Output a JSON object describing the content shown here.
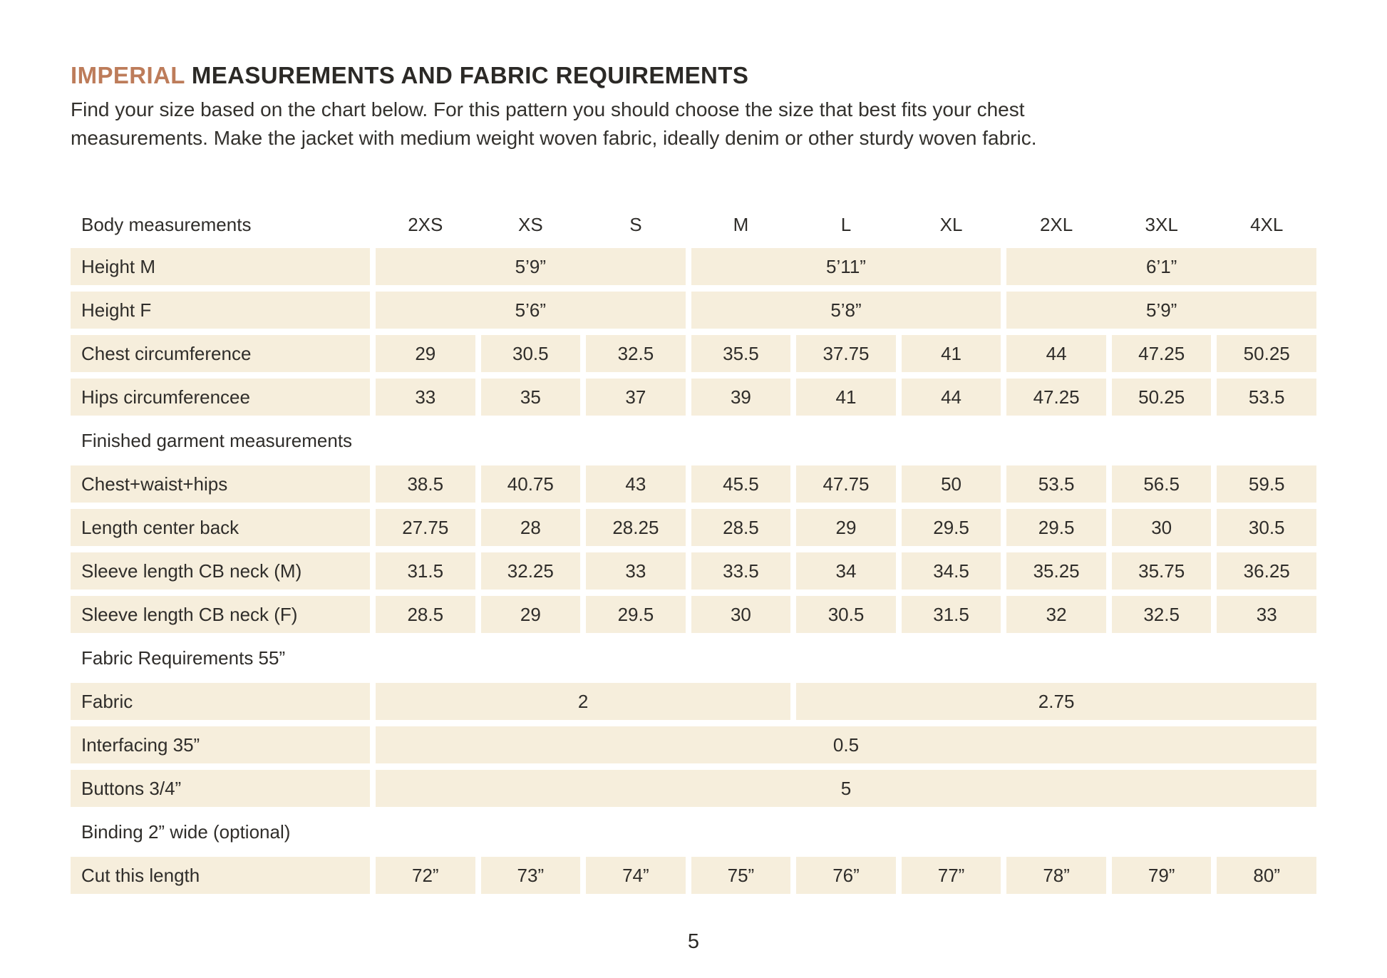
{
  "colors": {
    "accent": "#bd7c5a",
    "cell_bg": "#f6eedc",
    "text": "#2f2d2a"
  },
  "header": {
    "title_accent": "IMPERIAL",
    "title_rest": "MEASUREMENTS AND FABRIC REQUIREMENTS",
    "intro_line1": "Find your size based on the chart below. For this pattern you should choose the size that best fits your chest",
    "intro_line2": "measurements. Make the jacket with medium weight woven fabric, ideally denim or other sturdy woven fabric."
  },
  "table": {
    "columns_label": "Body measurements",
    "sizes": [
      "2XS",
      "XS",
      "S",
      "M",
      "L",
      "XL",
      "2XL",
      "3XL",
      "4XL"
    ],
    "rows": [
      {
        "label": "Height M",
        "spans": [
          3,
          3,
          3
        ],
        "values": [
          "5’9”",
          "5’11”",
          "6’1”"
        ]
      },
      {
        "label": "Height F",
        "spans": [
          3,
          3,
          3
        ],
        "values": [
          "5’6”",
          "5’8”",
          "5’9”"
        ]
      },
      {
        "label": "Chest circumference",
        "values": [
          "29",
          "30.5",
          "32.5",
          "35.5",
          "37.75",
          "41",
          "44",
          "47.25",
          "50.25"
        ]
      },
      {
        "label": "Hips circumferencee",
        "values": [
          "33",
          "35",
          "37",
          "39",
          "41",
          "44",
          "47.25",
          "50.25",
          "53.5"
        ]
      },
      {
        "section": "Finished garment measurements"
      },
      {
        "label": "Chest+waist+hips",
        "values": [
          "38.5",
          "40.75",
          "43",
          "45.5",
          "47.75",
          "50",
          "53.5",
          "56.5",
          "59.5"
        ]
      },
      {
        "label": "Length center back",
        "values": [
          "27.75",
          "28",
          "28.25",
          "28.5",
          "29",
          "29.5",
          "29.5",
          "30",
          "30.5"
        ]
      },
      {
        "label": "Sleeve length CB neck (M)",
        "values": [
          "31.5",
          "32.25",
          "33",
          "33.5",
          "34",
          "34.5",
          "35.25",
          "35.75",
          "36.25"
        ]
      },
      {
        "label": "Sleeve length CB neck (F)",
        "values": [
          "28.5",
          "29",
          "29.5",
          "30",
          "30.5",
          "31.5",
          "32",
          "32.5",
          "33"
        ]
      },
      {
        "section": "Fabric Requirements 55”"
      },
      {
        "label": "Fabric",
        "spans": [
          4,
          5
        ],
        "values": [
          "2",
          "2.75"
        ]
      },
      {
        "label": "Interfacing 35”",
        "spans": [
          9
        ],
        "values": [
          "0.5"
        ]
      },
      {
        "label": "Buttons 3/4”",
        "spans": [
          9
        ],
        "values": [
          "5"
        ]
      },
      {
        "section": "Binding 2” wide (optional)"
      },
      {
        "label": "Cut this length",
        "values": [
          "72”",
          "73”",
          "74”",
          "75”",
          "76”",
          "77”",
          "78”",
          "79”",
          "80”"
        ]
      }
    ]
  },
  "footer": {
    "page_number": "5"
  }
}
